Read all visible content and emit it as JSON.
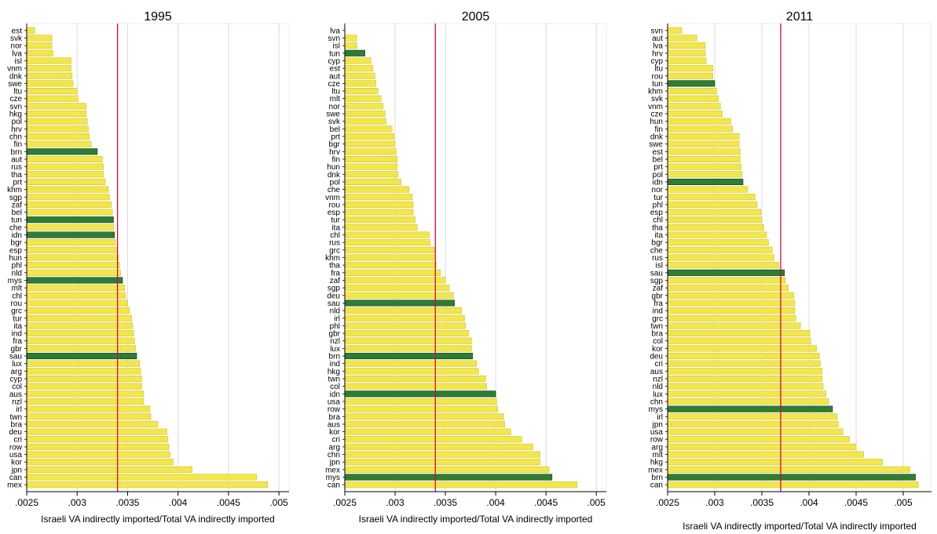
{
  "chart_data": [
    {
      "type": "bar",
      "orientation": "horizontal",
      "title": "1995",
      "xlabel": "Israeli VA indirectly imported/Total VA indirectly imported",
      "xlim": [
        0.0025,
        0.0051
      ],
      "x_ticks": [
        ".0025",
        ".003",
        ".0035",
        ".004",
        ".0045",
        ".005"
      ],
      "x_tick_values": [
        0.0025,
        0.003,
        0.0035,
        0.004,
        0.0045,
        0.005
      ],
      "reference_line": 0.0034,
      "grid": true,
      "categories": [
        "est",
        "svk",
        "nor",
        "lva",
        "isl",
        "vnm",
        "dnk",
        "swe",
        "ltu",
        "cze",
        "svn",
        "hkg",
        "pol",
        "hrv",
        "chn",
        "fin",
        "brn",
        "aut",
        "rus",
        "tha",
        "prt",
        "khm",
        "sgp",
        "zaf",
        "bel",
        "tun",
        "che",
        "idn",
        "bgr",
        "esp",
        "hun",
        "phl",
        "nld",
        "mys",
        "mlt",
        "chl",
        "rou",
        "grc",
        "tur",
        "ita",
        "ind",
        "fra",
        "gbr",
        "sau",
        "lux",
        "arg",
        "cyp",
        "col",
        "aus",
        "nzl",
        "irl",
        "twn",
        "bra",
        "deu",
        "cri",
        "row",
        "usa",
        "kor",
        "jpn",
        "can",
        "mex"
      ],
      "values": [
        0.00258,
        0.00275,
        0.00275,
        0.00276,
        0.00294,
        0.00294,
        0.00295,
        0.00296,
        0.003,
        0.00301,
        0.00309,
        0.00309,
        0.0031,
        0.00311,
        0.00312,
        0.00314,
        0.0032,
        0.00325,
        0.00326,
        0.00326,
        0.00328,
        0.00331,
        0.00332,
        0.00334,
        0.00335,
        0.00336,
        0.00336,
        0.00337,
        0.00338,
        0.00339,
        0.00341,
        0.00342,
        0.00343,
        0.00345,
        0.00347,
        0.00348,
        0.0035,
        0.00352,
        0.00354,
        0.00355,
        0.00356,
        0.00357,
        0.00358,
        0.00359,
        0.00362,
        0.00363,
        0.00364,
        0.00364,
        0.00366,
        0.00366,
        0.00372,
        0.00373,
        0.0038,
        0.00389,
        0.0039,
        0.00391,
        0.00392,
        0.00395,
        0.00414,
        0.00478,
        0.00489
      ],
      "highlighted": [
        "brn",
        "tun",
        "idn",
        "mys",
        "sau"
      ]
    },
    {
      "type": "bar",
      "orientation": "horizontal",
      "title": "2005",
      "xlabel": "Israeli VA indirectly imported/Total VA indirectly imported",
      "xlim": [
        0.0025,
        0.0051
      ],
      "x_ticks": [
        ".0025",
        ".003",
        ".0035",
        ".004",
        ".0045",
        ".005"
      ],
      "x_tick_values": [
        0.0025,
        0.003,
        0.0035,
        0.004,
        0.0045,
        0.005
      ],
      "reference_line": 0.0034,
      "grid": true,
      "categories": [
        "lva",
        "svn",
        "isl",
        "tun",
        "cyp",
        "est",
        "aut",
        "cze",
        "ltu",
        "mlt",
        "nor",
        "swe",
        "svk",
        "bel",
        "prt",
        "bgr",
        "hrv",
        "fin",
        "hun",
        "dnk",
        "pol",
        "che",
        "vnm",
        "rou",
        "esp",
        "tur",
        "ita",
        "chl",
        "rus",
        "grc",
        "khm",
        "tha",
        "fra",
        "zaf",
        "sgp",
        "deu",
        "sau",
        "nld",
        "irl",
        "phl",
        "gbr",
        "nzl",
        "lux",
        "brn",
        "ind",
        "hkg",
        "twn",
        "col",
        "idn",
        "usa",
        "row",
        "bra",
        "aus",
        "kor",
        "cri",
        "arg",
        "chn",
        "jpn",
        "mex",
        "mys",
        "can"
      ],
      "values": [
        0.0025,
        0.00262,
        0.00262,
        0.0027,
        0.00276,
        0.00278,
        0.0028,
        0.00281,
        0.00283,
        0.00286,
        0.00288,
        0.0029,
        0.00291,
        0.00297,
        0.00299,
        0.003,
        0.00301,
        0.00302,
        0.00302,
        0.00303,
        0.00306,
        0.00314,
        0.00317,
        0.00318,
        0.00318,
        0.0032,
        0.00322,
        0.00334,
        0.00335,
        0.00339,
        0.0034,
        0.00341,
        0.00345,
        0.0035,
        0.00354,
        0.00358,
        0.00359,
        0.00366,
        0.00369,
        0.0037,
        0.00373,
        0.00376,
        0.00376,
        0.00377,
        0.00381,
        0.00383,
        0.0039,
        0.00391,
        0.004,
        0.00401,
        0.00402,
        0.00408,
        0.00409,
        0.00415,
        0.00426,
        0.00437,
        0.00444,
        0.00444,
        0.00453,
        0.00456,
        0.00481
      ],
      "highlighted": [
        "tun",
        "sau",
        "brn",
        "idn",
        "mys"
      ]
    },
    {
      "type": "bar",
      "orientation": "horizontal",
      "title": "2011",
      "xlabel": "Israeli VA indirectly imported/Total VA indirectly imported",
      "xlim": [
        0.0025,
        0.0053
      ],
      "x_ticks": [
        ".0025",
        ".003",
        ".0035",
        ".004",
        ".0045",
        ".005"
      ],
      "x_tick_values": [
        0.0025,
        0.003,
        0.0035,
        0.004,
        0.0045,
        0.005
      ],
      "reference_line": 0.0037,
      "grid": true,
      "categories": [
        "svn",
        "aut",
        "lva",
        "hrv",
        "cyp",
        "ltu",
        "rou",
        "tun",
        "khm",
        "svk",
        "vnm",
        "cze",
        "hun",
        "fin",
        "dnk",
        "swe",
        "est",
        "bel",
        "prt",
        "pol",
        "idn",
        "nor",
        "tur",
        "phl",
        "esp",
        "chl",
        "tha",
        "ita",
        "bgr",
        "che",
        "rus",
        "isl",
        "sau",
        "sgp",
        "zaf",
        "gbr",
        "fra",
        "ind",
        "grc",
        "twn",
        "bra",
        "col",
        "kor",
        "deu",
        "cri",
        "aus",
        "nzl",
        "nld",
        "lux",
        "chn",
        "mys",
        "irl",
        "jpn",
        "usa",
        "row",
        "arg",
        "mlt",
        "hkg",
        "mex",
        "brn",
        "can"
      ],
      "values": [
        0.00265,
        0.00281,
        0.0029,
        0.0029,
        0.00291,
        0.00298,
        0.00298,
        0.003,
        0.00302,
        0.00304,
        0.00306,
        0.00308,
        0.00317,
        0.00319,
        0.00326,
        0.00326,
        0.00327,
        0.00327,
        0.00328,
        0.00329,
        0.0033,
        0.00335,
        0.00343,
        0.00345,
        0.00349,
        0.0035,
        0.00352,
        0.00355,
        0.00357,
        0.00361,
        0.00363,
        0.00368,
        0.00374,
        0.00375,
        0.00378,
        0.00384,
        0.00385,
        0.00385,
        0.00386,
        0.00391,
        0.00401,
        0.00402,
        0.00408,
        0.00411,
        0.00412,
        0.00414,
        0.00414,
        0.00415,
        0.00418,
        0.00421,
        0.00425,
        0.0043,
        0.00431,
        0.00436,
        0.00443,
        0.0045,
        0.00458,
        0.00478,
        0.00507,
        0.00513,
        0.00516
      ],
      "highlighted": [
        "tun",
        "idn",
        "sau",
        "mys",
        "brn"
      ]
    }
  ],
  "colors": {
    "bar": "#f2e64c",
    "bar_outline": "#cfc22e",
    "highlight": "#2e7d32",
    "highlight_outline": "#123d14",
    "reference_line": "#c8102e",
    "grid": "#dcdcdc",
    "axis": "#000000"
  }
}
